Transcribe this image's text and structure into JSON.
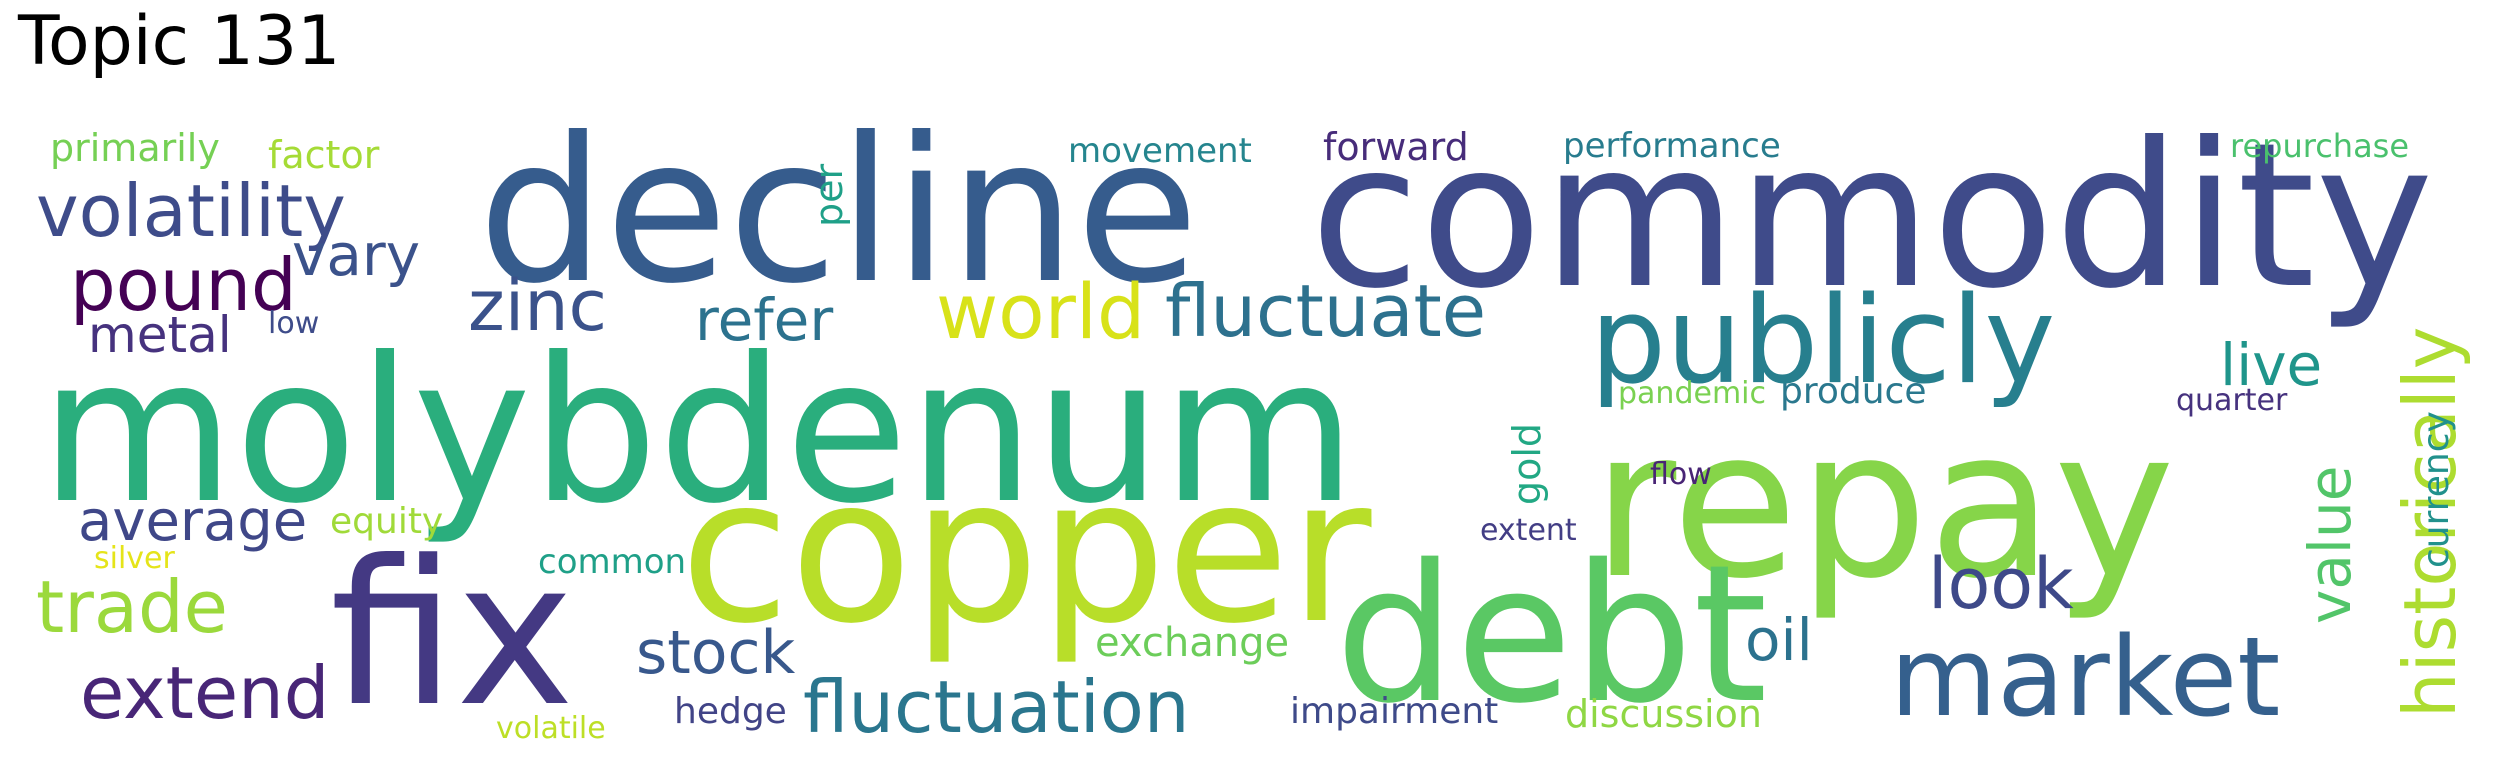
{
  "title": "Topic 131",
  "words": [
    {
      "text": "molybdenum",
      "color": "#2aae7d"
    },
    {
      "text": "decline",
      "color": "#365c8d"
    },
    {
      "text": "commodity",
      "color": "#3f4b8a"
    },
    {
      "text": "repay",
      "color": "#86d549"
    },
    {
      "text": "copper",
      "color": "#b8de29"
    },
    {
      "text": "fix",
      "color": "#443983"
    },
    {
      "text": "debt",
      "color": "#5ac864"
    },
    {
      "text": "publicly",
      "color": "#277f8e"
    },
    {
      "text": "market",
      "color": "#35608d"
    },
    {
      "text": "volatility",
      "color": "#3e4c8a"
    },
    {
      "text": "fluctuate",
      "color": "#2d718e"
    },
    {
      "text": "fluctuation",
      "color": "#2a768e"
    },
    {
      "text": "historically",
      "color": "#addc30"
    },
    {
      "text": "world",
      "color": "#d8e219"
    },
    {
      "text": "pound",
      "color": "#440154"
    },
    {
      "text": "zinc",
      "color": "#3b528b"
    },
    {
      "text": "extend",
      "color": "#482677"
    },
    {
      "text": "trade",
      "color": "#9bd93c"
    },
    {
      "text": "look",
      "color": "#3e4989"
    },
    {
      "text": "stock",
      "color": "#38588c"
    },
    {
      "text": "refer",
      "color": "#2c728e"
    },
    {
      "text": "average",
      "color": "#3f4788"
    },
    {
      "text": "value",
      "color": "#52c569"
    },
    {
      "text": "vary",
      "color": "#3b528b"
    },
    {
      "text": "metal",
      "color": "#46327e"
    },
    {
      "text": "oil",
      "color": "#2c728e"
    },
    {
      "text": "live",
      "color": "#1f958b"
    },
    {
      "text": "exchange",
      "color": "#6ccd5a"
    },
    {
      "text": "primarily",
      "color": "#75d054"
    },
    {
      "text": "factor",
      "color": "#a5db36"
    },
    {
      "text": "movement",
      "color": "#25858e"
    },
    {
      "text": "forward",
      "color": "#472c7a"
    },
    {
      "text": "performance",
      "color": "#287c8e"
    },
    {
      "text": "repurchase",
      "color": "#4ac16d"
    },
    {
      "text": "per",
      "color": "#1fa088"
    },
    {
      "text": "low",
      "color": "#3e4c8a"
    },
    {
      "text": "produce",
      "color": "#2a788e"
    },
    {
      "text": "pandemic",
      "color": "#7ad151"
    },
    {
      "text": "quarter",
      "color": "#46327e"
    },
    {
      "text": "currency",
      "color": "#21918c"
    },
    {
      "text": "gold",
      "color": "#22a884"
    },
    {
      "text": "flow",
      "color": "#482475"
    },
    {
      "text": "extent",
      "color": "#433e85"
    },
    {
      "text": "equity",
      "color": "#a0da39"
    },
    {
      "text": "silver",
      "color": "#e5e419"
    },
    {
      "text": "common",
      "color": "#1fa088"
    },
    {
      "text": "hedge",
      "color": "#414487"
    },
    {
      "text": "impairment",
      "color": "#3e4a89"
    },
    {
      "text": "discussion",
      "color": "#8fd744"
    },
    {
      "text": "volatile",
      "color": "#bddf26"
    }
  ]
}
